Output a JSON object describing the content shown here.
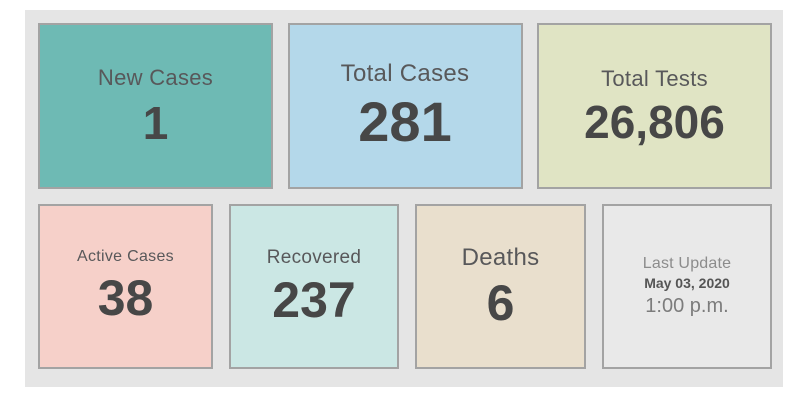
{
  "page": {
    "background": "#ffffff",
    "panel_background": "#e5e5e5",
    "card_border_color": "#a3a3a3",
    "number_color": "#474747",
    "label_color": "#58585a"
  },
  "cards": [
    {
      "id": "new-cases",
      "label": "New Cases",
      "value": "1",
      "bg": "#6ebab4"
    },
    {
      "id": "total-cases",
      "label": "Total Cases",
      "value": "281",
      "bg": "#b4d8ea"
    },
    {
      "id": "total-tests",
      "label": "Total Tests",
      "value": "26,806",
      "bg": "#e0e4c4"
    },
    {
      "id": "active-cases",
      "label": "Active Cases",
      "value": "38",
      "bg": "#f6d0c9"
    },
    {
      "id": "recovered",
      "label": "Recovered",
      "value": "237",
      "bg": "#cbe7e4"
    },
    {
      "id": "deaths",
      "label": "Deaths",
      "value": "6",
      "bg": "#e9dfcd"
    }
  ],
  "last_update": {
    "label": "Last Update",
    "date": "May 03, 2020",
    "time": "1:00 p.m.",
    "bg": "#e9e9e9"
  }
}
